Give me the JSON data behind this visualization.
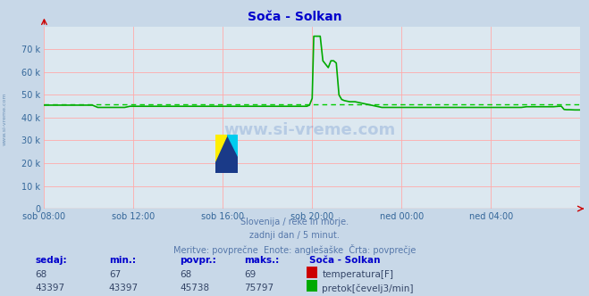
{
  "title": "Soča - Solkan",
  "bg_color": "#c8d8e8",
  "plot_bg_color": "#dce8f0",
  "grid_color": "#ffaaaa",
  "x_labels": [
    "sob 08:00",
    "sob 12:00",
    "sob 16:00",
    "sob 20:00",
    "ned 00:00",
    "ned 04:00"
  ],
  "x_ticks_norm": [
    0.0,
    0.1667,
    0.3333,
    0.5,
    0.6667,
    0.8333
  ],
  "y_ticks": [
    0,
    10000,
    20000,
    30000,
    40000,
    50000,
    60000,
    70000
  ],
  "y_labels": [
    "0",
    "10 k",
    "20 k",
    "30 k",
    "40 k",
    "50 k",
    "60 k",
    "70 k"
  ],
  "ylim": [
    0,
    80000
  ],
  "avg_flow": 45738,
  "subtitle_lines": [
    "Slovenija / reke in morje.",
    "zadnji dan / 5 minut.",
    "Meritve: povprečne  Enote: anglešaške  Črta: povprečje"
  ],
  "table_headers": [
    "sedaj:",
    "min.:",
    "povpr.:",
    "maks.:",
    "Soča - Solkan"
  ],
  "table_row1": [
    "68",
    "67",
    "68",
    "69"
  ],
  "table_row2": [
    "43397",
    "43397",
    "45738",
    "75797"
  ],
  "label_temp": "temperatura[F]",
  "label_flow": "pretok[čevelj3/min]",
  "color_temp": "#cc0000",
  "color_flow": "#00aa00",
  "color_avg": "#00cc00",
  "title_color": "#0000cc",
  "subtitle_color": "#5577aa",
  "table_header_color": "#0000cc",
  "table_value_color": "#334466",
  "axis_label_color": "#336699",
  "flow_data_x": [
    0.0,
    0.005,
    0.01,
    0.02,
    0.03,
    0.04,
    0.05,
    0.06,
    0.07,
    0.08,
    0.09,
    0.1,
    0.11,
    0.12,
    0.13,
    0.14,
    0.15,
    0.16,
    0.17,
    0.18,
    0.19,
    0.2,
    0.21,
    0.22,
    0.23,
    0.24,
    0.25,
    0.26,
    0.27,
    0.28,
    0.29,
    0.3,
    0.31,
    0.32,
    0.33,
    0.34,
    0.35,
    0.36,
    0.37,
    0.38,
    0.39,
    0.4,
    0.41,
    0.42,
    0.43,
    0.44,
    0.45,
    0.46,
    0.47,
    0.48,
    0.49,
    0.495,
    0.5,
    0.503,
    0.506,
    0.51,
    0.515,
    0.52,
    0.53,
    0.535,
    0.54,
    0.545,
    0.55,
    0.555,
    0.56,
    0.57,
    0.58,
    0.59,
    0.6,
    0.61,
    0.62,
    0.63,
    0.64,
    0.65,
    0.66,
    0.67,
    0.68,
    0.69,
    0.7,
    0.71,
    0.72,
    0.73,
    0.74,
    0.75,
    0.76,
    0.77,
    0.78,
    0.79,
    0.8,
    0.81,
    0.82,
    0.83,
    0.84,
    0.85,
    0.86,
    0.87,
    0.88,
    0.89,
    0.9,
    0.91,
    0.92,
    0.93,
    0.94,
    0.95,
    0.96,
    0.965,
    0.97,
    0.975,
    0.98,
    0.99,
    1.0
  ],
  "flow_data_y": [
    45500,
    45500,
    45500,
    45500,
    45500,
    45500,
    45500,
    45500,
    45500,
    45500,
    45500,
    44500,
    44500,
    44500,
    44500,
    44500,
    44500,
    45000,
    45000,
    45000,
    45000,
    45000,
    45000,
    45000,
    45000,
    45000,
    45000,
    45000,
    45000,
    45000,
    45000,
    45000,
    45000,
    45000,
    45000,
    45000,
    45000,
    45000,
    45000,
    45000,
    45000,
    45000,
    45000,
    45000,
    45000,
    45000,
    45000,
    45000,
    45000,
    45000,
    45000,
    45500,
    48500,
    75797,
    75797,
    75797,
    75797,
    65000,
    62000,
    65000,
    65000,
    64000,
    50000,
    48000,
    47500,
    47000,
    47000,
    46500,
    46000,
    45500,
    45000,
    44500,
    44500,
    44500,
    44500,
    44500,
    44500,
    44500,
    44500,
    44500,
    44500,
    44500,
    44500,
    44500,
    44500,
    44500,
    44500,
    44500,
    44500,
    44500,
    44500,
    44500,
    44500,
    44500,
    44500,
    44500,
    44500,
    44500,
    44800,
    44800,
    44800,
    44800,
    44800,
    44800,
    45000,
    45000,
    43600,
    43500,
    43500,
    43400,
    43397
  ]
}
